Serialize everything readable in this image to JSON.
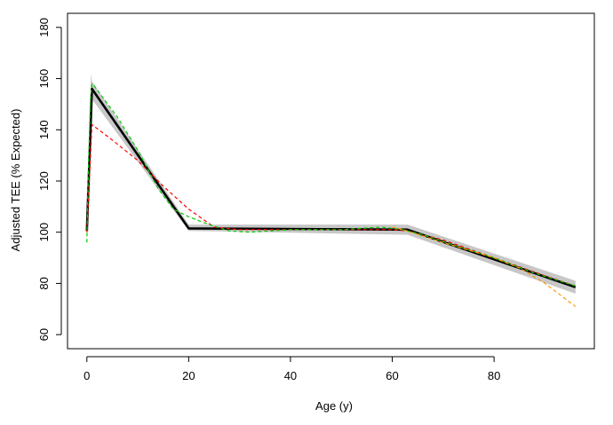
{
  "chart_data": {
    "type": "line",
    "title": "",
    "xlabel": "Age (y)",
    "ylabel": "Adjusted TEE (% Expected)",
    "xlim": [
      -3.8,
      99.7
    ],
    "ylim": [
      54.5,
      185.5
    ],
    "xticks": [
      0,
      20,
      40,
      60,
      80
    ],
    "yticks": [
      60,
      80,
      100,
      120,
      140,
      160,
      180
    ],
    "grid": false,
    "legend": "none",
    "band": {
      "x": [
        0,
        0.8,
        1,
        20,
        63,
        96
      ],
      "upper": [
        102,
        162,
        159,
        103,
        103,
        81
      ],
      "lower": [
        99,
        151,
        152,
        100.5,
        99,
        76
      ]
    },
    "series": [
      {
        "color": "#000000",
        "style": "solid",
        "x": [
          0,
          1,
          20,
          63,
          96
        ],
        "y": [
          100.5,
          156,
          101.5,
          101,
          78.5
        ]
      },
      {
        "color": "#ff0000",
        "style": "dashed",
        "x": [
          0,
          1,
          5,
          10,
          15,
          20,
          25,
          30,
          40,
          50,
          60,
          63,
          70,
          80,
          90,
          96
        ],
        "y": [
          100,
          142,
          136,
          128,
          118,
          109,
          102,
          101,
          101,
          101,
          101,
          100.5,
          97,
          90,
          83,
          79
        ]
      },
      {
        "color": "#00cc00",
        "style": "dashed",
        "x": [
          0,
          0.3,
          0.7,
          1,
          1.5,
          3,
          6,
          10,
          14,
          17,
          20,
          24,
          28,
          32,
          40,
          50,
          58,
          62,
          66,
          72,
          80,
          88,
          96
        ],
        "y": [
          96,
          125,
          152,
          158,
          157,
          153,
          145,
          132,
          117,
          109,
          106,
          103,
          100.5,
          100,
          101,
          101,
          102,
          101,
          99,
          95,
          90,
          84,
          79
        ]
      },
      {
        "color": "#ff9900",
        "style": "dashed",
        "x": [
          60,
          63,
          70,
          80,
          85,
          90,
          96
        ],
        "y": [
          102,
          100.5,
          96,
          90,
          86,
          80,
          71
        ]
      }
    ]
  }
}
